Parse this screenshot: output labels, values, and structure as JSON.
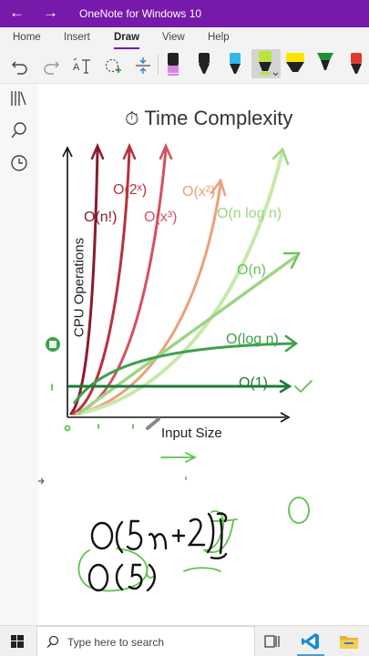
{
  "window": {
    "title": "OneNote for Windows 10",
    "back_icon": "arrow-left-icon",
    "forward_icon": "arrow-right-icon"
  },
  "ribbon": {
    "tabs": [
      {
        "label": "Home"
      },
      {
        "label": "Insert"
      },
      {
        "label": "Draw",
        "active": true
      },
      {
        "label": "View"
      },
      {
        "label": "Help"
      }
    ],
    "tools": [
      "undo-icon",
      "redo-icon",
      "ink-to-text-icon",
      "lasso-select-icon",
      "add-space-icon"
    ],
    "pens": [
      {
        "color": "#d784e6",
        "type": "highlighter"
      },
      {
        "color": "#111111",
        "type": "pen"
      },
      {
        "color": "#33b6e8",
        "type": "pen"
      },
      {
        "color": "#b8e63c",
        "type": "highlighter",
        "selected": true
      },
      {
        "color": "#ffe500",
        "type": "highlighter"
      },
      {
        "color": "#1f8f3a",
        "type": "pen"
      },
      {
        "color": "#e03a2f",
        "type": "pen"
      }
    ]
  },
  "sidebar": {
    "icons": [
      "notebooks-icon",
      "search-icon",
      "recent-icon"
    ]
  },
  "note": {
    "title": "Time Complexity",
    "ylabel": "CPU Operations",
    "xlabel": "Input Size",
    "curves": [
      {
        "label": "O(n!)",
        "color": "#8b1a2e"
      },
      {
        "label": "O(2ˣ)",
        "color": "#b8323d"
      },
      {
        "label": "O(x³)",
        "color": "#d6505f"
      },
      {
        "label": "O(x²)",
        "color": "#eca07a"
      },
      {
        "label": "O(n log n)",
        "color": "#9ed485"
      },
      {
        "label": "O(n)",
        "color": "#6cc257"
      },
      {
        "label": "O(log n)",
        "color": "#3ea14c"
      },
      {
        "label": "O(1)",
        "color": "#1d7a3a"
      }
    ],
    "handwritten": {
      "line1": "O(5n+2)",
      "line2": "O(5)"
    }
  },
  "taskbar": {
    "search_placeholder": "Type here to search",
    "start_icon": "windows-logo-icon"
  }
}
